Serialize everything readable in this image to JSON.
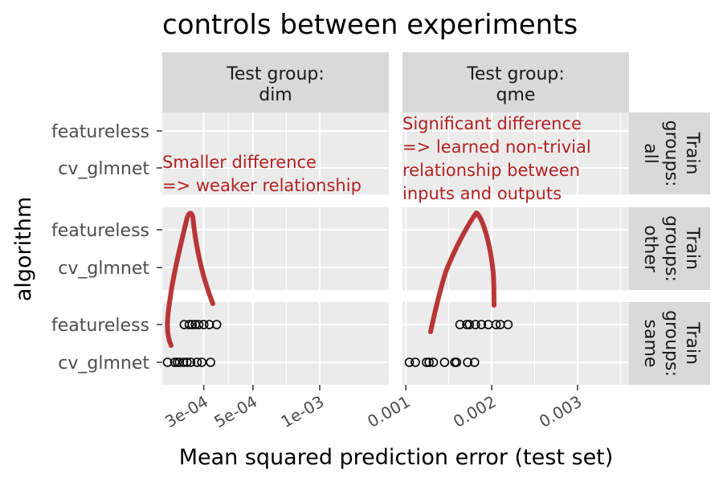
{
  "chart_data": {
    "type": "scatter",
    "title": "controls between experiments",
    "xlabel": "Mean squared prediction error (test set)",
    "ylabel": "algorithm",
    "algorithms": [
      "featureless",
      "cv_glmnet"
    ],
    "columns": [
      {
        "key": "dim",
        "strip": [
          "Test group:",
          "dim"
        ],
        "x_scale": "log10",
        "xlim": [
          0.000195,
          0.00205
        ],
        "ticks": [
          {
            "value": 0.0003,
            "label": "3e-04"
          },
          {
            "value": 0.0005,
            "label": "5e-04"
          },
          {
            "value": 0.001,
            "label": "1e-03"
          }
        ],
        "annotation": [
          "Smaller difference",
          "=> weaker relationship"
        ]
      },
      {
        "key": "qme",
        "strip": [
          "Test group:",
          "qme"
        ],
        "x_scale": "linear",
        "xlim": [
          0.00096,
          0.0036
        ],
        "ticks": [
          {
            "value": 0.001,
            "label": "0.001"
          },
          {
            "value": 0.002,
            "label": "0.002"
          },
          {
            "value": 0.003,
            "label": "0.003"
          }
        ],
        "annotation": [
          "Significant difference",
          "=> learned non-trivial",
          "relationship between",
          "inputs and outputs"
        ]
      }
    ],
    "rows": [
      {
        "key": "all",
        "strip": [
          "Train",
          "groups:",
          "all"
        ]
      },
      {
        "key": "other",
        "strip": [
          "Train",
          "groups:",
          "other"
        ]
      },
      {
        "key": "same",
        "strip": [
          "Train",
          "groups:",
          "same"
        ]
      }
    ],
    "points": [
      {
        "col": "dim",
        "row": "same",
        "algorithm": "featureless",
        "x": [
          0.000245,
          0.000258,
          0.000266,
          0.000275,
          0.000285,
          0.0003,
          0.000318,
          0.000343
        ]
      },
      {
        "col": "dim",
        "row": "same",
        "algorithm": "cv_glmnet",
        "x": [
          0.000206,
          0.000222,
          0.000228,
          0.000233,
          0.000243,
          0.000252,
          0.000262,
          0.00028,
          0.000294,
          0.000322
        ]
      },
      {
        "col": "qme",
        "row": "same",
        "algorithm": "featureless",
        "x": [
          0.00163,
          0.00171,
          0.00174,
          0.00181,
          0.00188,
          0.00196,
          0.00205,
          0.0021,
          0.00219
        ]
      },
      {
        "col": "qme",
        "row": "same",
        "algorithm": "cv_glmnet",
        "x": [
          0.00104,
          0.00111,
          0.00124,
          0.00127,
          0.00132,
          0.00145,
          0.00157,
          0.00159,
          0.00172,
          0.0018
        ]
      }
    ],
    "grid": true,
    "annotation_color": "#b22222",
    "stroke_color": "#b22222",
    "panel_background": "#ebebeb",
    "strip_background": "#d9d9d9"
  }
}
